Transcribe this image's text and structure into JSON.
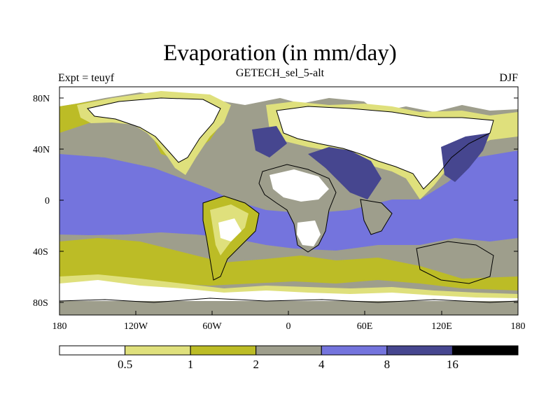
{
  "title": "Evaporation (in mm/day)",
  "subtitle": "GETECH_sel_5-alt",
  "left_label": "Expt = teuyf",
  "right_label": "DJF",
  "lat_ticks": [
    "80N",
    "40N",
    "0",
    "40S",
    "80S"
  ],
  "lon_ticks": [
    "180",
    "120W",
    "60W",
    "0",
    "60E",
    "120E",
    "180"
  ],
  "colorbar": {
    "labels": [
      "0.5",
      "1",
      "2",
      "4",
      "8",
      "16"
    ],
    "colors": [
      "#ffffff",
      "#dfe07c",
      "#bcbc26",
      "#9e9e8c",
      "#7474dd",
      "#46468f",
      "#000000"
    ]
  },
  "colors": {
    "land_dry": "#ffffff",
    "ocean_main": "#9e9e8c",
    "ocean_tropical": "#7474dd",
    "ocean_hot": "#46468f",
    "coastline": "#000000"
  }
}
